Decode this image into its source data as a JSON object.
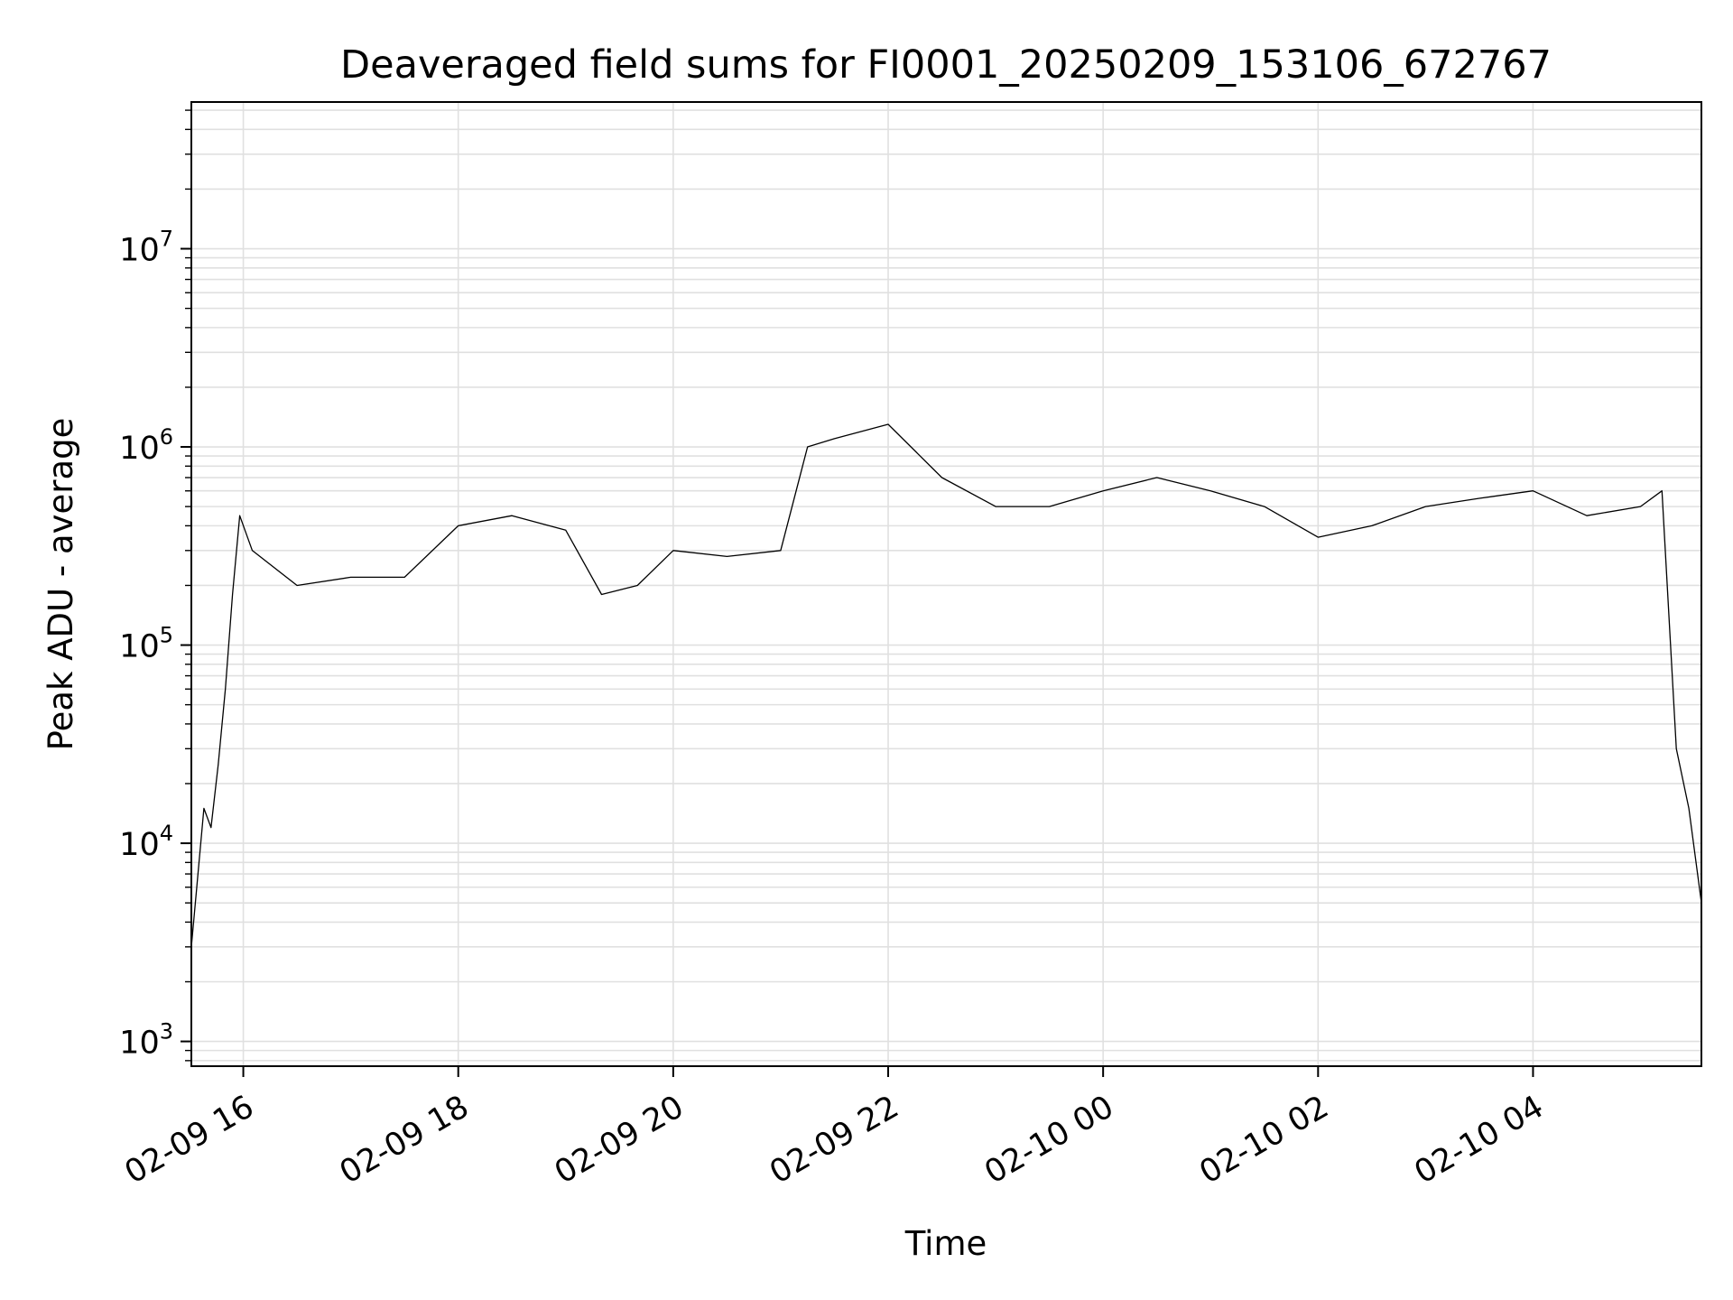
{
  "chart_data": {
    "type": "line",
    "title": "Deaveraged field sums for FI0001_20250209_153106_672767",
    "xlabel": "Time",
    "ylabel": "Peak ADU - average",
    "yscale": "log",
    "xlim": [
      "2025-02-09 15:31",
      "2025-02-10 05:34"
    ],
    "ylim": [
      750,
      55000000
    ],
    "grid": true,
    "line_color": "#000000",
    "grid_color": "#e0e0e0",
    "x_ticks": [
      {
        "label": "02-09 16",
        "time": "2025-02-09 16:00"
      },
      {
        "label": "02-09 18",
        "time": "2025-02-09 18:00"
      },
      {
        "label": "02-09 20",
        "time": "2025-02-09 20:00"
      },
      {
        "label": "02-09 22",
        "time": "2025-02-09 22:00"
      },
      {
        "label": "02-10 00",
        "time": "2025-02-10 00:00"
      },
      {
        "label": "02-10 02",
        "time": "2025-02-10 02:00"
      },
      {
        "label": "02-10 04",
        "time": "2025-02-10 04:00"
      }
    ],
    "y_ticks": [
      {
        "base": "10",
        "exp": "3",
        "value": 1000
      },
      {
        "base": "10",
        "exp": "4",
        "value": 10000
      },
      {
        "base": "10",
        "exp": "5",
        "value": 100000
      },
      {
        "base": "10",
        "exp": "6",
        "value": 1000000
      },
      {
        "base": "10",
        "exp": "7",
        "value": 10000000
      }
    ],
    "series": [
      {
        "x": [
          "2025-02-09 15:31",
          "2025-02-09 15:34",
          "2025-02-09 15:38",
          "2025-02-09 15:42",
          "2025-02-09 15:46",
          "2025-02-09 15:50",
          "2025-02-09 15:54",
          "2025-02-09 15:58",
          "2025-02-09 16:05",
          "2025-02-09 16:30",
          "2025-02-09 17:00",
          "2025-02-09 17:30",
          "2025-02-09 18:00",
          "2025-02-09 18:30",
          "2025-02-09 19:00",
          "2025-02-09 19:20",
          "2025-02-09 19:40",
          "2025-02-09 20:00",
          "2025-02-09 20:30",
          "2025-02-09 21:00",
          "2025-02-09 21:15",
          "2025-02-09 21:30",
          "2025-02-09 22:00",
          "2025-02-09 22:30",
          "2025-02-09 23:00",
          "2025-02-09 23:30",
          "2025-02-10 00:00",
          "2025-02-10 00:30",
          "2025-02-10 01:00",
          "2025-02-10 01:30",
          "2025-02-10 02:00",
          "2025-02-10 02:30",
          "2025-02-10 03:00",
          "2025-02-10 03:30",
          "2025-02-10 04:00",
          "2025-02-10 04:30",
          "2025-02-10 05:00",
          "2025-02-10 05:12",
          "2025-02-10 05:20",
          "2025-02-10 05:27",
          "2025-02-10 05:34"
        ],
        "y": [
          3000,
          6000,
          15000,
          12000,
          25000,
          60000,
          180000,
          450000,
          300000,
          200000,
          220000,
          220000,
          400000,
          450000,
          380000,
          180000,
          200000,
          300000,
          280000,
          300000,
          1000000,
          1100000,
          1300000,
          700000,
          500000,
          500000,
          600000,
          700000,
          600000,
          500000,
          350000,
          400000,
          500000,
          550000,
          600000,
          450000,
          500000,
          600000,
          30000,
          15000,
          5000
        ]
      }
    ]
  }
}
